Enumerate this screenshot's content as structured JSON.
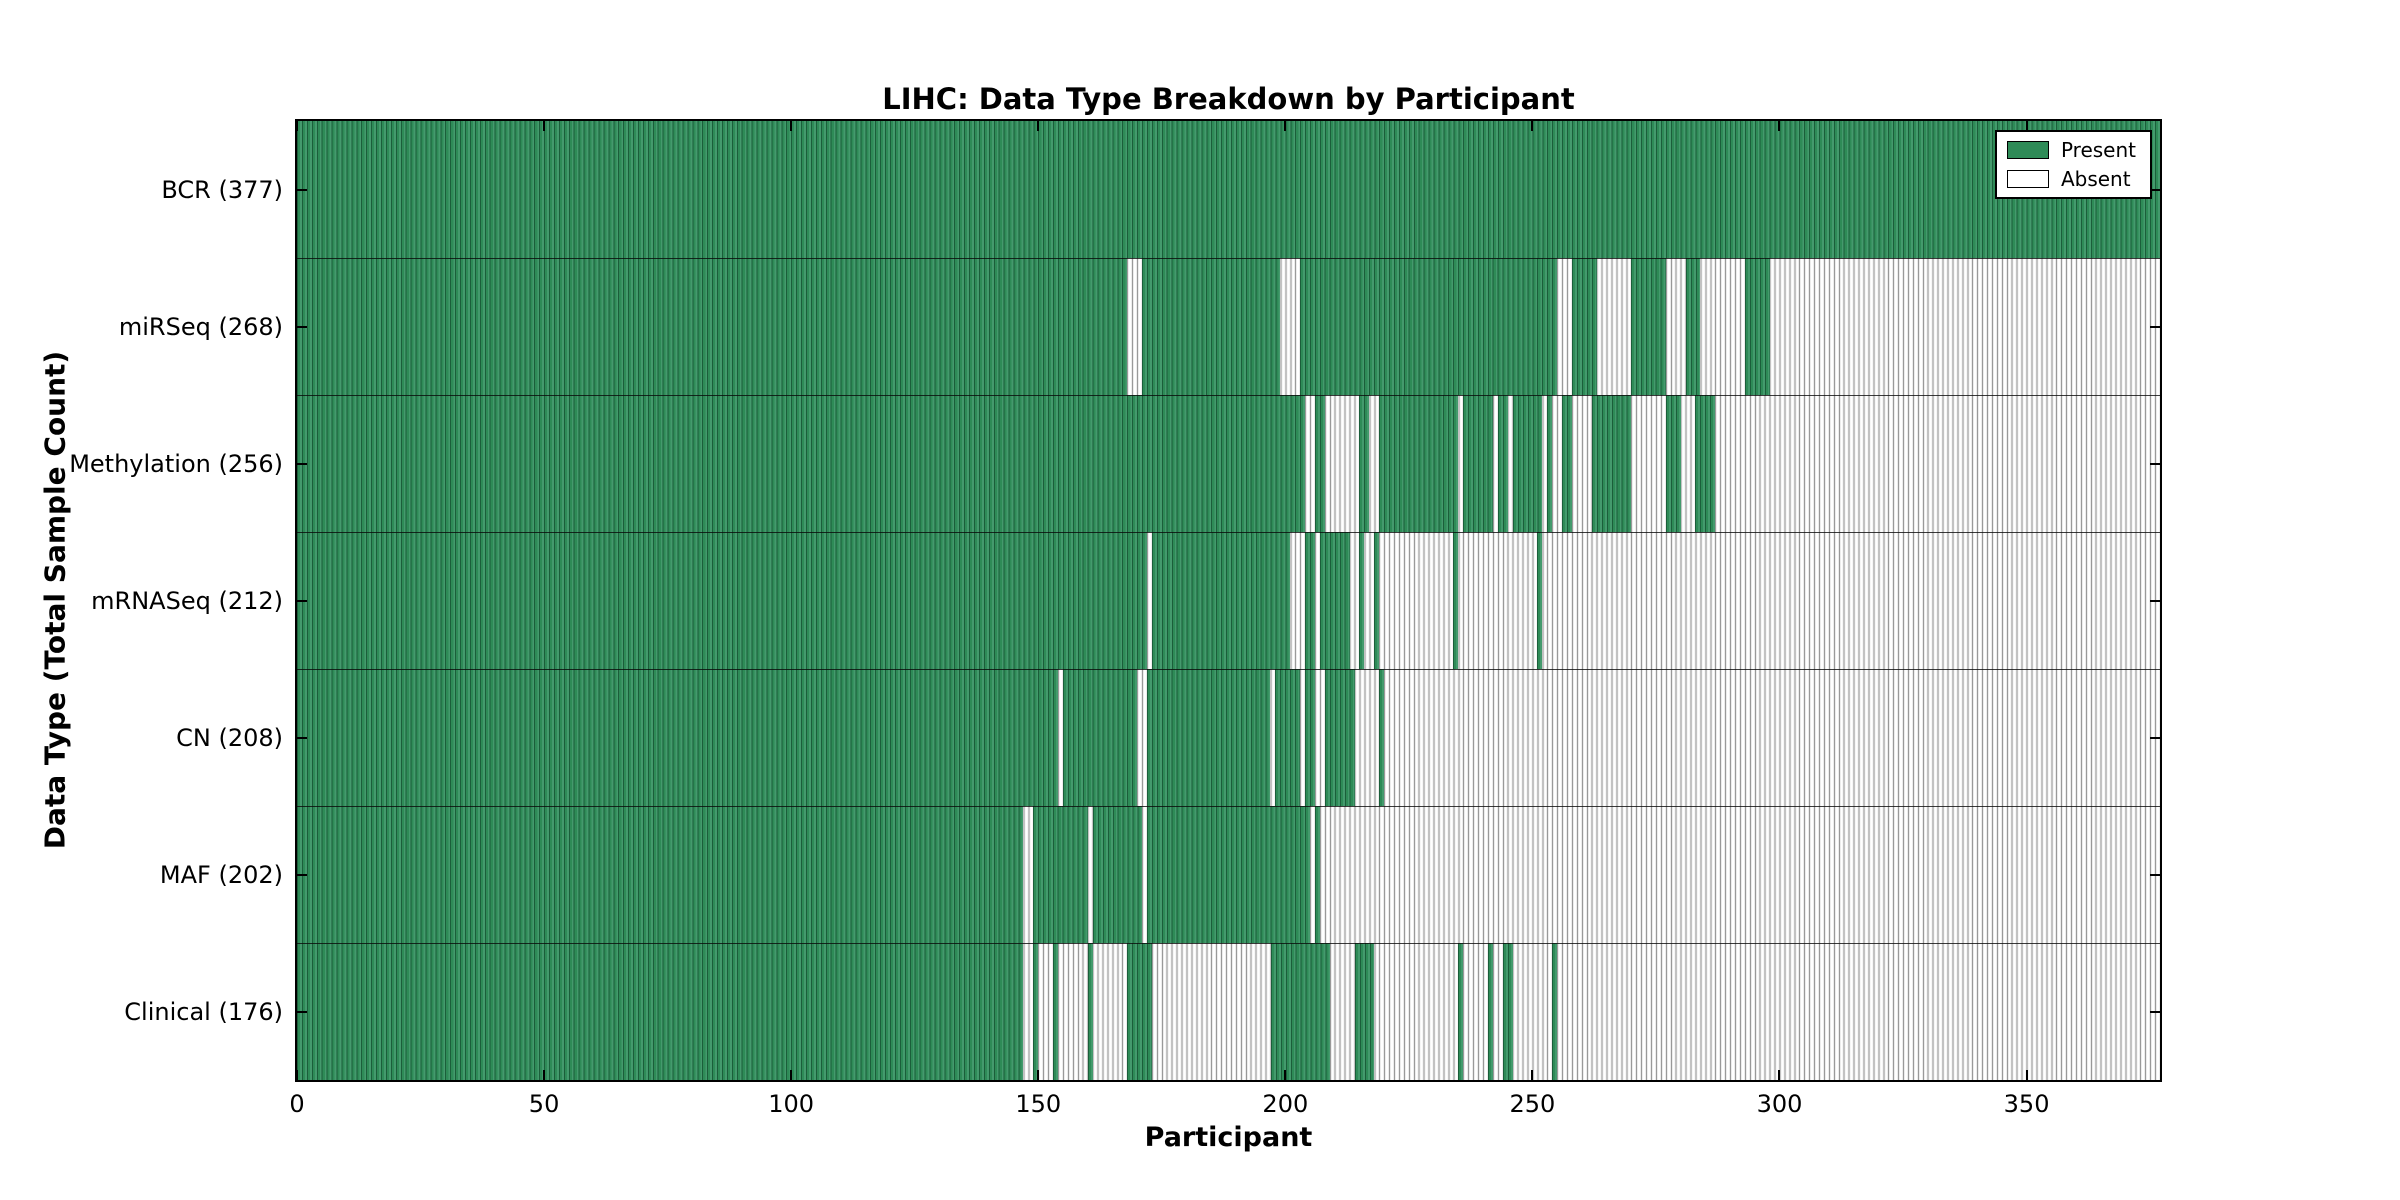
{
  "title": "LIHC: Data Type Breakdown by Participant",
  "xlabel": "Participant",
  "ylabel": "Data Type (Total Sample Count)",
  "legend": [
    {
      "label": "Present",
      "color": "#2e8b57"
    },
    {
      "label": "Absent",
      "color": "#ffffff"
    }
  ],
  "colors": {
    "present": "#2e8b57",
    "present_edge": "#1b5e3a",
    "present_light": "#449a6d",
    "absent": "#ffffff",
    "absent_edge": "#999999",
    "absent_shade": "#ececec"
  },
  "chart_data": {
    "type": "heatmap",
    "x_axis": {
      "label": "Participant",
      "ticks": [
        0,
        50,
        100,
        150,
        200,
        250,
        300,
        350
      ],
      "max": 377
    },
    "y_axis": {
      "label": "Data Type (Total Sample Count)"
    },
    "legend_entries": [
      "Present",
      "Absent"
    ],
    "rows": [
      {
        "label": "BCR (377)",
        "name": "bcr",
        "total_samples": 377,
        "present_runs": [
          [
            0,
            377
          ]
        ]
      },
      {
        "label": "miRSeq (268)",
        "name": "mirseq",
        "total_samples": 268,
        "present_runs": [
          [
            0,
            168
          ],
          [
            171,
            199
          ],
          [
            203,
            255
          ],
          [
            258,
            263
          ],
          [
            270,
            277
          ],
          [
            281,
            284
          ],
          [
            293,
            298
          ]
        ]
      },
      {
        "label": "Methylation (256)",
        "name": "methylation",
        "total_samples": 256,
        "present_runs": [
          [
            0,
            204
          ],
          [
            206,
            208
          ],
          [
            215,
            217
          ],
          [
            219,
            235
          ],
          [
            236,
            242
          ],
          [
            243,
            245
          ],
          [
            246,
            252
          ],
          [
            253,
            254
          ],
          [
            256,
            258
          ],
          [
            262,
            270
          ],
          [
            277,
            280
          ],
          [
            283,
            287
          ]
        ]
      },
      {
        "label": "mRNASeq (212)",
        "name": "mrnaseq",
        "total_samples": 212,
        "present_runs": [
          [
            0,
            172
          ],
          [
            173,
            201
          ],
          [
            204,
            206
          ],
          [
            207,
            213
          ],
          [
            215,
            216
          ],
          [
            218,
            219
          ],
          [
            234,
            235
          ],
          [
            251,
            252
          ]
        ]
      },
      {
        "label": "CN (208)",
        "name": "cn",
        "total_samples": 208,
        "present_runs": [
          [
            0,
            154
          ],
          [
            155,
            170
          ],
          [
            172,
            197
          ],
          [
            198,
            203
          ],
          [
            204,
            206
          ],
          [
            208,
            214
          ],
          [
            219,
            220
          ]
        ]
      },
      {
        "label": "MAF (202)",
        "name": "maf",
        "total_samples": 202,
        "present_runs": [
          [
            0,
            147
          ],
          [
            149,
            160
          ],
          [
            161,
            171
          ],
          [
            172,
            205
          ],
          [
            206,
            207
          ]
        ]
      },
      {
        "label": "Clinical (176)",
        "name": "clinical",
        "total_samples": 176,
        "present_runs": [
          [
            0,
            147
          ],
          [
            149,
            150
          ],
          [
            153,
            154
          ],
          [
            160,
            161
          ],
          [
            168,
            173
          ],
          [
            197,
            209
          ],
          [
            214,
            218
          ],
          [
            235,
            236
          ],
          [
            241,
            242
          ],
          [
            244,
            246
          ],
          [
            254,
            255
          ]
        ]
      }
    ]
  }
}
